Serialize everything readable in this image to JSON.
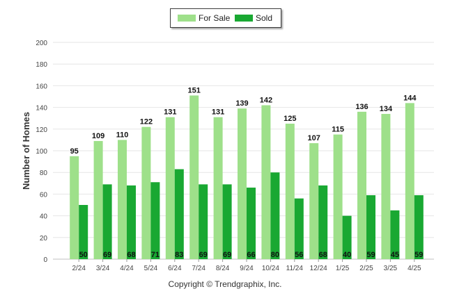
{
  "chart_data": {
    "type": "bar",
    "title": "",
    "xlabel": "",
    "ylabel": "Number of Homes",
    "ylim": [
      0,
      200
    ],
    "yticks": [
      0,
      20,
      40,
      60,
      80,
      100,
      120,
      140,
      160,
      180,
      200
    ],
    "grid": true,
    "legend_position": "top-center",
    "categories": [
      "2/24",
      "3/24",
      "4/24",
      "5/24",
      "6/24",
      "7/24",
      "8/24",
      "9/24",
      "10/24",
      "11/24",
      "12/24",
      "1/25",
      "2/25",
      "3/25",
      "4/25"
    ],
    "series": [
      {
        "name": "For Sale",
        "color": "#9ee08a",
        "values": [
          95,
          109,
          110,
          122,
          131,
          151,
          131,
          139,
          142,
          125,
          107,
          115,
          136,
          134,
          144
        ]
      },
      {
        "name": "Sold",
        "color": "#19a832",
        "values": [
          50,
          69,
          68,
          71,
          83,
          69,
          69,
          66,
          80,
          56,
          68,
          40,
          59,
          45,
          59
        ]
      }
    ]
  },
  "legend": {
    "for_sale_label": "For Sale",
    "sold_label": "Sold"
  },
  "footer": {
    "copyright": "Copyright © Trendgraphix, Inc."
  }
}
